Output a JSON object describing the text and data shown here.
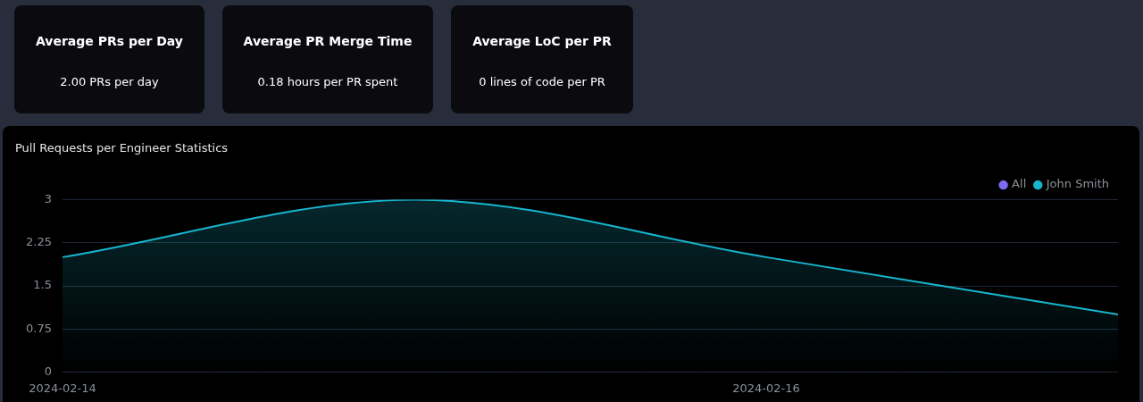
{
  "chart_data": [
    {
      "type": "other",
      "title": "Average PRs per Day",
      "annotations": [
        "2.00 PRs per day"
      ]
    },
    {
      "type": "other",
      "title": "Average PR Merge Time",
      "annotations": [
        "0.18 hours per PR spent"
      ]
    },
    {
      "type": "other",
      "title": "Average LoC per PR",
      "annotations": [
        "0 lines of code per PR"
      ]
    },
    {
      "type": "area",
      "title": "Pull Requests per Engineer Statistics",
      "x": [
        "2024-02-14",
        "2024-02-15",
        "2024-02-16",
        "2024-02-17"
      ],
      "series": [
        {
          "name": "All",
          "color": "#7b6cf0",
          "values": [
            null,
            null,
            null,
            null
          ]
        },
        {
          "name": "John Smith",
          "color": "#17b6cf",
          "values": [
            2,
            3,
            2,
            1
          ]
        }
      ],
      "xlim": [
        "2024-02-14",
        "2024-02-17"
      ],
      "xticks": [
        {
          "value": "2024-02-14",
          "label": "2024-02-14"
        },
        {
          "value": "2024-02-16",
          "label": "2024-02-16"
        }
      ],
      "ylim": [
        0,
        3
      ],
      "yticks": [
        0,
        0.75,
        1.5,
        2.25,
        3
      ],
      "grid": "y",
      "legend": "top right",
      "marker": "none",
      "line_style": "solid"
    }
  ]
}
